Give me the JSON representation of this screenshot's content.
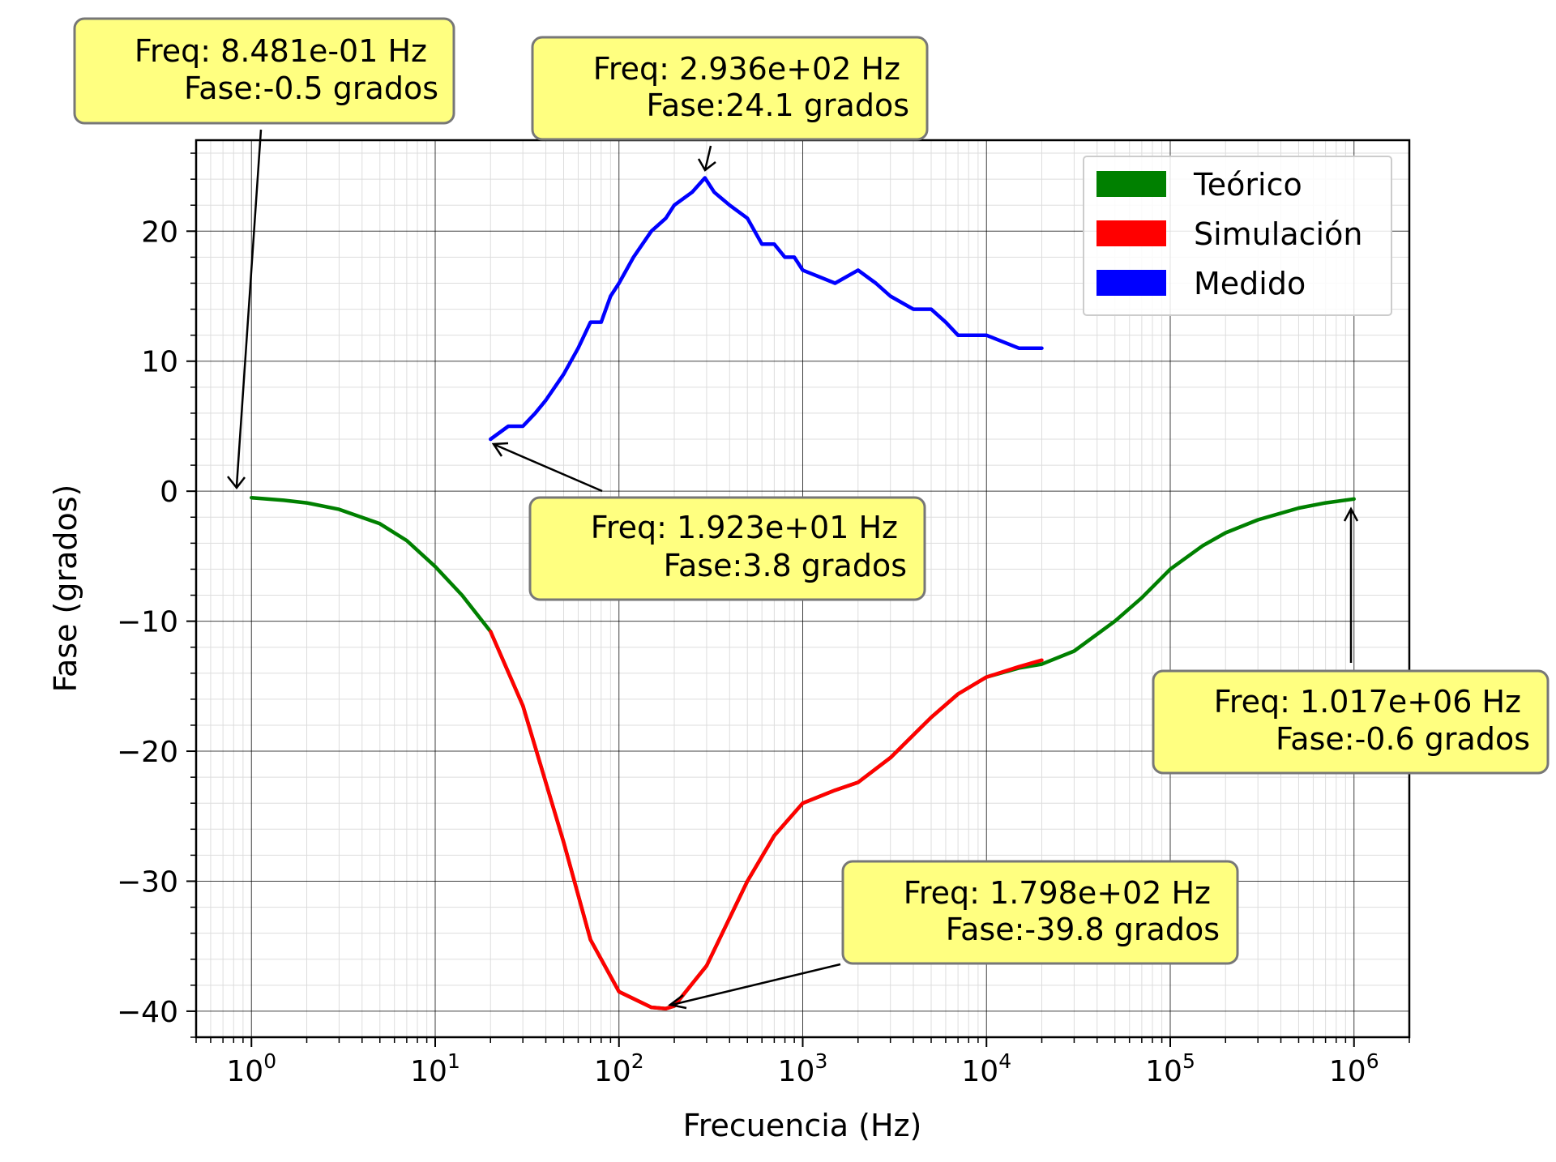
{
  "chart_data": {
    "type": "line",
    "xlabel": "Frecuencia (Hz)",
    "ylabel": "Fase (grados)",
    "xscale": "log",
    "xlim": [
      0.5,
      2000000
    ],
    "ylim": [
      -42,
      27
    ],
    "grid": "major and minor",
    "legend_position": "top-right",
    "x_ticks": [
      {
        "base": "10",
        "exp": "0",
        "value": 1
      },
      {
        "base": "10",
        "exp": "1",
        "value": 10
      },
      {
        "base": "10",
        "exp": "2",
        "value": 100
      },
      {
        "base": "10",
        "exp": "3",
        "value": 1000
      },
      {
        "base": "10",
        "exp": "4",
        "value": 10000
      },
      {
        "base": "10",
        "exp": "5",
        "value": 100000
      },
      {
        "base": "10",
        "exp": "6",
        "value": 1000000
      }
    ],
    "y_ticks": [
      {
        "label": "20",
        "value": 20
      },
      {
        "label": "10",
        "value": 10
      },
      {
        "label": "0",
        "value": 0
      },
      {
        "label": "−10",
        "value": -10
      },
      {
        "label": "−20",
        "value": -20
      },
      {
        "label": "−30",
        "value": -30
      },
      {
        "label": "−40",
        "value": -40
      }
    ],
    "series": [
      {
        "name": "Teórico",
        "color": "#008000",
        "x": [
          1,
          1.5,
          2,
          3,
          5,
          7,
          10,
          14,
          20,
          30,
          50,
          70,
          100,
          150,
          180,
          200,
          300,
          500,
          700,
          1000,
          1500,
          2000,
          3000,
          5000,
          7000,
          10000,
          15000,
          20000,
          30000,
          50000,
          70000,
          100000,
          150000,
          200000,
          300000,
          500000,
          700000,
          1000000
        ],
        "y": [
          -0.5,
          -0.7,
          -0.9,
          -1.4,
          -2.5,
          -3.8,
          -5.8,
          -8.0,
          -10.8,
          -16.5,
          -27.0,
          -34.5,
          -38.5,
          -39.7,
          -39.8,
          -39.6,
          -36.5,
          -30.0,
          -26.5,
          -24.0,
          -23.0,
          -22.4,
          -20.5,
          -17.4,
          -15.6,
          -14.3,
          -13.6,
          -13.3,
          -12.3,
          -10.0,
          -8.2,
          -6.0,
          -4.2,
          -3.2,
          -2.2,
          -1.3,
          -0.9,
          -0.6
        ]
      },
      {
        "name": "Simulación",
        "color": "#ff0000",
        "x": [
          20,
          30,
          50,
          70,
          100,
          150,
          180,
          200,
          300,
          500,
          700,
          1000,
          1500,
          2000,
          3000,
          5000,
          7000,
          10000,
          15000,
          20000
        ],
        "y": [
          -10.8,
          -16.5,
          -27.0,
          -34.5,
          -38.5,
          -39.7,
          -39.8,
          -39.6,
          -36.5,
          -30.0,
          -26.5,
          -24.0,
          -23.0,
          -22.4,
          -20.5,
          -17.4,
          -15.6,
          -14.3,
          -13.5,
          -13.0
        ]
      },
      {
        "name": "Medido",
        "color": "#0000ff",
        "x": [
          20,
          25,
          30,
          35,
          40,
          50,
          60,
          70,
          80,
          90,
          100,
          120,
          150,
          180,
          200,
          250,
          293.6,
          330,
          400,
          500,
          600,
          700,
          800,
          900,
          1000,
          1500,
          2000,
          2500,
          3000,
          4000,
          5000,
          6000,
          7000,
          10000,
          15000,
          20000
        ],
        "y": [
          4,
          5,
          5,
          6,
          7,
          9,
          11,
          13,
          13,
          15,
          16,
          18,
          20,
          21,
          22,
          23,
          24.1,
          23,
          22,
          21,
          19,
          19,
          18,
          18,
          17,
          16,
          17,
          16,
          15,
          14,
          14,
          13,
          12,
          12,
          11,
          11
        ]
      }
    ],
    "annotations": [
      {
        "line1": "Freq: 8.481e-01  Hz",
        "line2": "Fase:-0.5 grados",
        "x": 0.8481,
        "y": -0.5
      },
      {
        "line1": "Freq: 2.936e+02  Hz",
        "line2": "Fase:24.1 grados",
        "x": 293.6,
        "y": 24.1
      },
      {
        "line1": "Freq: 1.923e+01  Hz",
        "line2": "Fase:3.8 grados",
        "x": 19.23,
        "y": 3.8
      },
      {
        "line1": "Freq: 1.017e+06  Hz",
        "line2": "Fase:-0.6 grados",
        "x": 1017000,
        "y": -0.6
      },
      {
        "line1": "Freq: 1.798e+02  Hz",
        "line2": "Fase:-39.8 grados",
        "x": 179.8,
        "y": -39.8
      }
    ],
    "annotation_box_color": "#ffff80"
  }
}
